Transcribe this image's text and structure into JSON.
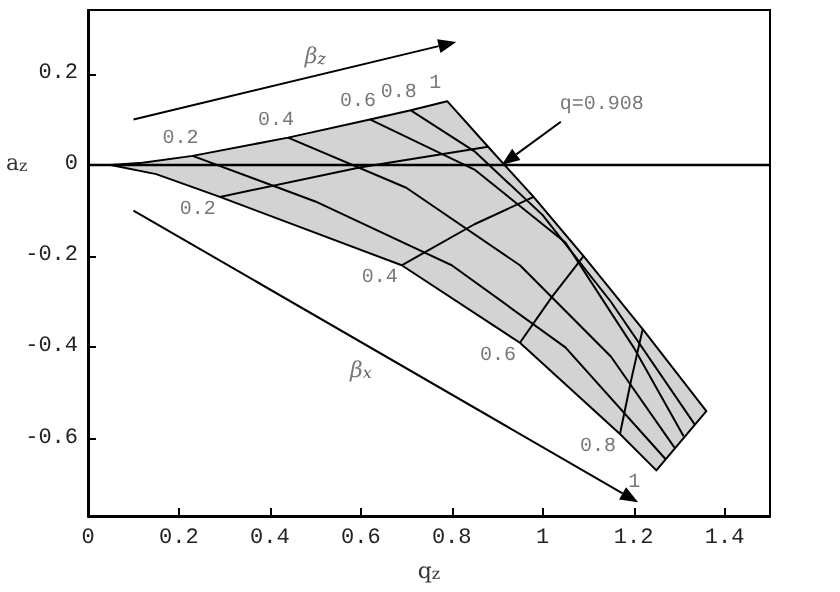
{
  "chart_data": {
    "type": "line",
    "xlabel": "q$_{z}$",
    "ylabel": "a$_{z}$",
    "xlim": [
      0,
      1.5
    ],
    "ylim": [
      -0.77,
      0.34
    ],
    "xticks": [
      0,
      0.2,
      0.4,
      0.6,
      0.8,
      1,
      1.2,
      1.4
    ],
    "yticks": [
      -0.6,
      -0.4,
      -0.2,
      0,
      0.2
    ],
    "grid": false,
    "marker": "none",
    "line_style": "solid",
    "ref_lines": [
      {
        "axis": "y",
        "value": 0,
        "color": "#000000"
      }
    ],
    "series": [
      {
        "type": "area",
        "color": "#d3d3d3",
        "x": [
          0.05,
          0.12,
          0.23,
          0.44,
          0.62,
          0.71,
          0.79,
          0.88,
          0.98,
          1.09,
          1.22,
          1.36,
          1.25,
          1.17,
          0.95,
          0.69,
          0.29,
          0.15
        ],
        "values": [
          0,
          0.005,
          0.02,
          0.06,
          0.1,
          0.12,
          0.14,
          0.04,
          -0.07,
          -0.2,
          -0.36,
          -0.54,
          -0.67,
          -0.59,
          -0.39,
          -0.22,
          -0.07,
          -0.02
        ]
      },
      {
        "color": "#000000",
        "x": [
          0.23,
          0.5,
          0.8,
          1.05,
          1.27
        ],
        "values": [
          0.02,
          -0.08,
          -0.22,
          -0.4,
          -0.645
        ]
      },
      {
        "color": "#000000",
        "x": [
          0.44,
          0.7,
          0.95,
          1.15,
          1.29
        ],
        "values": [
          0.06,
          -0.05,
          -0.22,
          -0.42,
          -0.62
        ]
      },
      {
        "color": "#000000",
        "x": [
          0.62,
          0.85,
          1.05,
          1.2,
          1.31
        ],
        "values": [
          0.1,
          -0.01,
          -0.17,
          -0.4,
          -0.595
        ]
      },
      {
        "color": "#000000",
        "x": [
          0.71,
          0.85,
          1.0,
          1.15,
          1.335
        ],
        "values": [
          0.12,
          0.03,
          -0.11,
          -0.3,
          -0.57
        ]
      },
      {
        "color": "#000000",
        "x": [
          0.29,
          0.6,
          0.88
        ],
        "values": [
          -0.07,
          -0.005,
          0.04
        ]
      },
      {
        "color": "#000000",
        "x": [
          0.69,
          0.85,
          0.98
        ],
        "values": [
          -0.22,
          -0.13,
          -0.07
        ]
      },
      {
        "color": "#000000",
        "x": [
          0.95,
          1.02,
          1.09
        ],
        "values": [
          -0.39,
          -0.29,
          -0.2
        ]
      },
      {
        "color": "#000000",
        "x": [
          1.17,
          1.195,
          1.22
        ],
        "values": [
          -0.59,
          -0.47,
          -0.36
        ]
      }
    ],
    "annotations": [
      "β$_{z}$",
      {
        "text": "0.2",
        "x": 0.23,
        "y": 0.02
      },
      {
        "text": "0.4",
        "x": 0.44,
        "y": 0.06
      },
      {
        "text": "0.6",
        "x": 0.62,
        "y": 0.1
      },
      {
        "text": "0.8",
        "x": 0.71,
        "y": 0.12
      },
      {
        "text": "1",
        "x": 0.79,
        "y": 0.14
      },
      "q=0.908",
      {
        "text": "0.2",
        "x": 0.29,
        "y": -0.07
      },
      {
        "text": "0.4",
        "x": 0.69,
        "y": -0.22
      },
      {
        "text": "0.6",
        "x": 0.95,
        "y": -0.39
      },
      {
        "text": "0.8",
        "x": 1.17,
        "y": -0.59
      },
      {
        "text": "1",
        "x": 1.25,
        "y": -0.67
      },
      "β$_{x}$"
    ]
  }
}
